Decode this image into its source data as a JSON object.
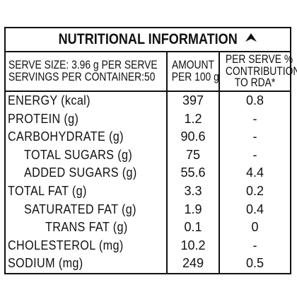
{
  "title": "NUTRITIONAL INFORMATION",
  "header": {
    "serve_size": "SERVE SIZE: 3.96 g PER SERVE",
    "servings": "SERVINGS PER CONTAINER:50",
    "amount_line1": "AMOUNT",
    "amount_line2": "PER 100 g",
    "rda_line1": "PER SERVE %",
    "rda_line2": "CONTRIBUTION",
    "rda_line3": "TO RDA*"
  },
  "rows": [
    {
      "label": "ENERGY (kcal)",
      "amount": "397",
      "rda": "0.8"
    },
    {
      "label": "PROTEIN (g)",
      "amount": "1.2",
      "rda": "-"
    },
    {
      "label": "CARBOHYDRATE (g)",
      "amount": "90.6",
      "rda": "-"
    },
    {
      "label": "TOTAL SUGARS (g)",
      "amount": "75",
      "rda": "-"
    },
    {
      "label": "ADDED SUGARS (g)",
      "amount": "55.6",
      "rda": "4.4"
    },
    {
      "label": "TOTAL FAT (g)",
      "amount": "3.3",
      "rda": "0.2"
    },
    {
      "label": "SATURATED FAT (g)",
      "amount": "1.9",
      "rda": "0.4"
    },
    {
      "label": "TRANS FAT (g)",
      "amount": "0.1",
      "rda": "0"
    },
    {
      "label": "CHOLESTEROL (mg)",
      "amount": "10.2",
      "rda": "-"
    },
    {
      "label": "SODIUM (mg)",
      "amount": "249",
      "rda": "0.5"
    }
  ]
}
